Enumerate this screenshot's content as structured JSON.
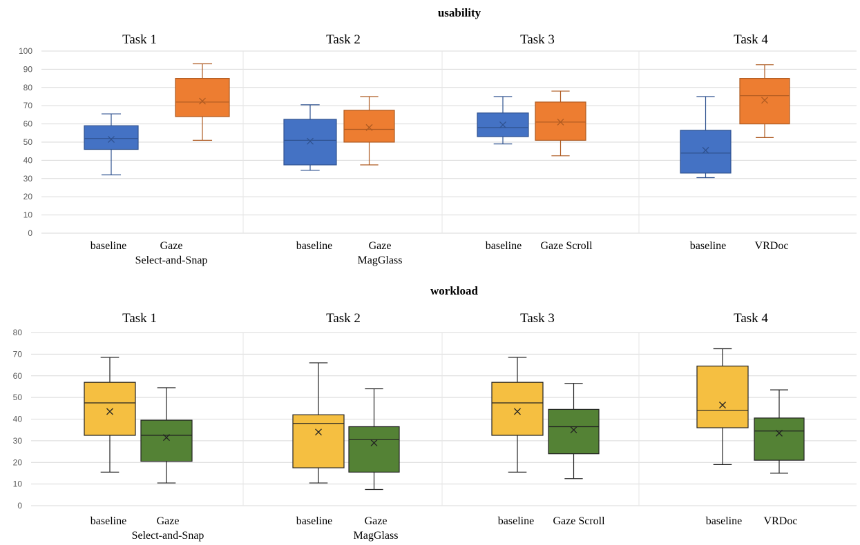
{
  "chart_data": [
    {
      "type": "box",
      "title": "usability",
      "ylim": [
        0,
        100
      ],
      "yticks": [
        0,
        10,
        20,
        30,
        40,
        50,
        60,
        70,
        80,
        90,
        100
      ],
      "grid": true,
      "tasks": [
        {
          "name": "Task 1",
          "boxes": [
            {
              "label": [
                "baseline"
              ],
              "color": "#4472C4",
              "stroke": "#2F528F",
              "min": 32,
              "q1": 46,
              "median": 52,
              "q3": 59,
              "max": 65.5,
              "mean": 51.5
            },
            {
              "label": [
                "Gaze",
                "Select-and-Snap"
              ],
              "color": "#ED7D31",
              "stroke": "#AE5A21",
              "min": 51,
              "q1": 64,
              "median": 72,
              "q3": 85,
              "max": 93,
              "mean": 72.5
            }
          ]
        },
        {
          "name": "Task 2",
          "boxes": [
            {
              "label": [
                "baseline"
              ],
              "color": "#4472C4",
              "stroke": "#2F528F",
              "min": 34.5,
              "q1": 37.5,
              "median": 51,
              "q3": 62.5,
              "max": 70.5,
              "mean": 50.5
            },
            {
              "label": [
                "Gaze",
                "MagGlass"
              ],
              "color": "#ED7D31",
              "stroke": "#AE5A21",
              "min": 37.5,
              "q1": 50,
              "median": 57,
              "q3": 67.5,
              "max": 75,
              "mean": 58
            }
          ]
        },
        {
          "name": "Task 3",
          "boxes": [
            {
              "label": [
                "baseline"
              ],
              "color": "#4472C4",
              "stroke": "#2F528F",
              "min": 49,
              "q1": 53,
              "median": 58,
              "q3": 66,
              "max": 75,
              "mean": 59.5
            },
            {
              "label": [
                "Gaze Scroll"
              ],
              "color": "#ED7D31",
              "stroke": "#AE5A21",
              "min": 42.5,
              "q1": 51,
              "median": 61,
              "q3": 72,
              "max": 78,
              "mean": 61
            }
          ]
        },
        {
          "name": "Task 4",
          "boxes": [
            {
              "label": [
                "baseline"
              ],
              "color": "#4472C4",
              "stroke": "#2F528F",
              "min": 30.5,
              "q1": 33,
              "median": 44,
              "q3": 56.5,
              "max": 75,
              "mean": 45.5
            },
            {
              "label": [
                "VRDoc"
              ],
              "color": "#ED7D31",
              "stroke": "#AE5A21",
              "min": 52.5,
              "q1": 60,
              "median": 75.5,
              "q3": 85,
              "max": 92.5,
              "mean": 73
            }
          ]
        }
      ]
    },
    {
      "type": "box",
      "title": "workload",
      "ylim": [
        0,
        80
      ],
      "yticks": [
        0,
        10,
        20,
        30,
        40,
        50,
        60,
        70,
        80
      ],
      "grid": true,
      "tasks": [
        {
          "name": "Task 1",
          "boxes": [
            {
              "label": [
                "baseline"
              ],
              "color": "#F5BF41",
              "stroke": "#222222",
              "min": 15.5,
              "q1": 32.5,
              "median": 47.5,
              "q3": 57,
              "max": 68.5,
              "mean": 43.5
            },
            {
              "label": [
                "Gaze",
                "Select-and-Snap"
              ],
              "color": "#548235",
              "stroke": "#222222",
              "min": 10.5,
              "q1": 20.5,
              "median": 32.5,
              "q3": 39.5,
              "max": 54.5,
              "mean": 31.5
            }
          ]
        },
        {
          "name": "Task 2",
          "boxes": [
            {
              "label": [
                "baseline"
              ],
              "color": "#F5BF41",
              "stroke": "#222222",
              "min": 10.5,
              "q1": 17.5,
              "median": 38,
              "q3": 42,
              "max": 66,
              "mean": 34
            },
            {
              "label": [
                "Gaze",
                "MagGlass"
              ],
              "color": "#548235",
              "stroke": "#222222",
              "min": 7.5,
              "q1": 15.5,
              "median": 30.5,
              "q3": 36.5,
              "max": 54,
              "mean": 29
            }
          ]
        },
        {
          "name": "Task 3",
          "boxes": [
            {
              "label": [
                "baseline"
              ],
              "color": "#F5BF41",
              "stroke": "#222222",
              "min": 15.5,
              "q1": 32.5,
              "median": 47.5,
              "q3": 57,
              "max": 68.5,
              "mean": 43.5
            },
            {
              "label": [
                "Gaze Scroll"
              ],
              "color": "#548235",
              "stroke": "#222222",
              "min": 12.5,
              "q1": 24,
              "median": 36.5,
              "q3": 44.5,
              "max": 56.5,
              "mean": 35
            }
          ]
        },
        {
          "name": "Task 4",
          "boxes": [
            {
              "label": [
                "baseline"
              ],
              "color": "#F5BF41",
              "stroke": "#222222",
              "min": 19,
              "q1": 36,
              "median": 44,
              "q3": 64.5,
              "max": 72.5,
              "mean": 46.5
            },
            {
              "label": [
                "VRDoc"
              ],
              "color": "#548235",
              "stroke": "#222222",
              "min": 15,
              "q1": 21,
              "median": 34.5,
              "q3": 40.5,
              "max": 53.5,
              "mean": 33.5
            }
          ]
        }
      ]
    }
  ]
}
